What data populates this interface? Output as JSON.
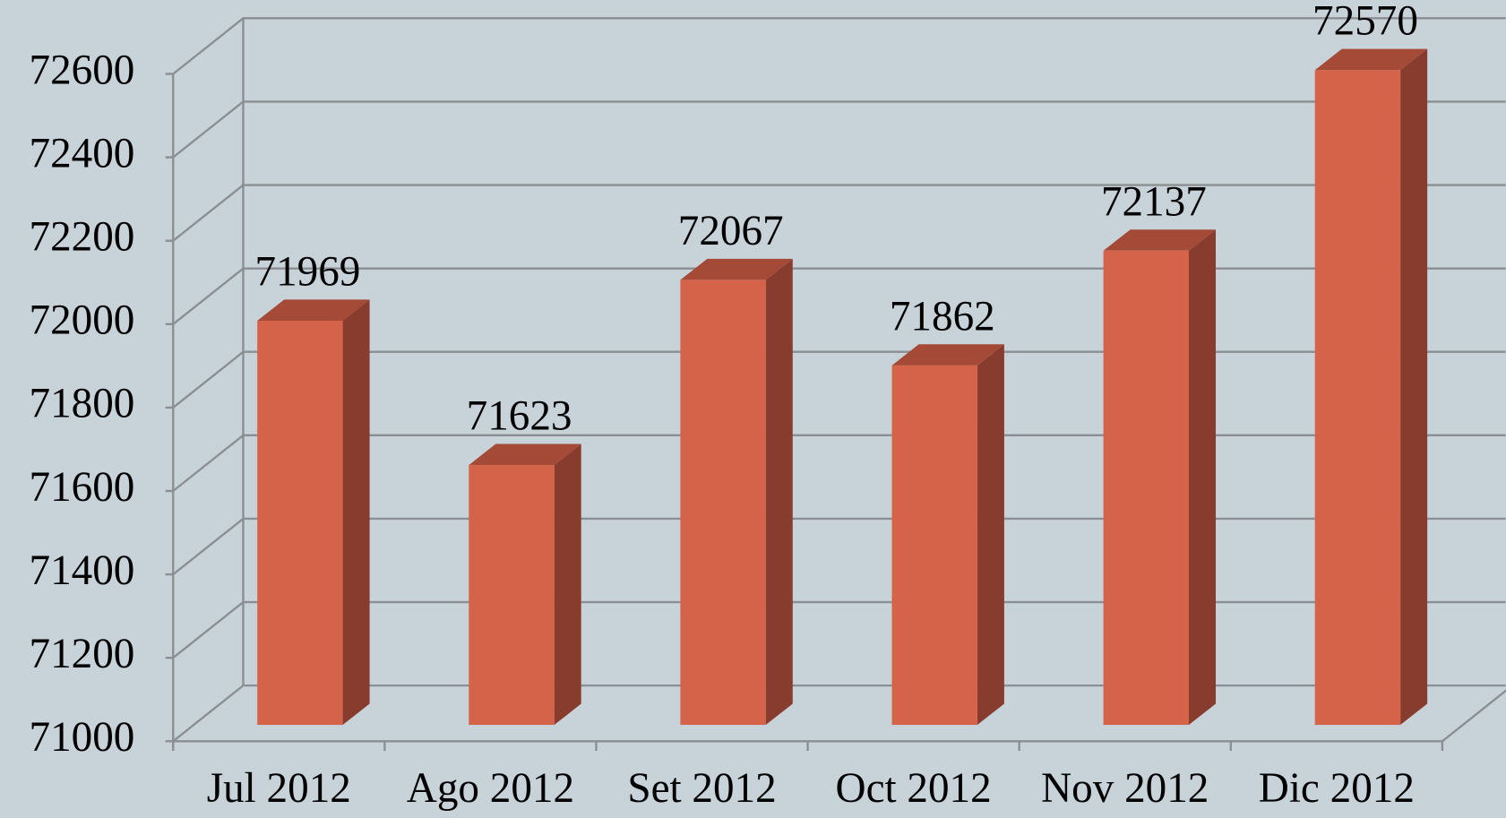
{
  "chart_data": {
    "type": "bar3d",
    "categories": [
      "Jul 2012",
      "Ago 2012",
      "Set 2012",
      "Oct 2012",
      "Nov 2012",
      "Dic 2012"
    ],
    "values": [
      71969,
      71623,
      72067,
      71862,
      72137,
      72570
    ],
    "color": "#d4634a",
    "ylim": [
      71000,
      72600
    ],
    "yticks": [
      71000,
      71200,
      71400,
      71600,
      71800,
      72000,
      72200,
      72400,
      72600
    ],
    "grid": true
  }
}
